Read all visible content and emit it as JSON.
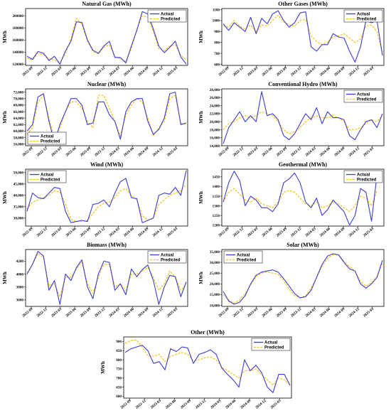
{
  "colors": {
    "actual": "#3b3bd6",
    "predicted": "#f2c318",
    "axis": "#000000"
  },
  "chart_data": [
    {
      "type": "line",
      "title": "Natural Gas (MWh)",
      "ylabel": "MWh",
      "ylim": [
        118000,
        212000
      ],
      "yticks": [
        120000,
        140000,
        160000,
        180000,
        200000
      ],
      "ytick_labels": [
        "120000",
        "140000",
        "160000",
        "180000",
        "200000"
      ],
      "xtick_labels": [
        "2022-09",
        "2022-12",
        "2023-03",
        "2023-06",
        "2023-09",
        "2023-12",
        "2024-03",
        "2024-06",
        "2024-09",
        "2024-12",
        "2025-03"
      ],
      "legend": "top-right",
      "series": [
        {
          "name": "Actual",
          "values": [
            133000,
            128000,
            141000,
            138000,
            126000,
            133000,
            120000,
            142000,
            158000,
            190000,
            189000,
            160000,
            143000,
            138000,
            150000,
            158000,
            131000,
            131000,
            122000,
            150000,
            176000,
            207000,
            203000,
            178000,
            150000,
            139000,
            148000,
            158000,
            132000,
            120000
          ]
        },
        {
          "name": "Predicted",
          "values": [
            130000,
            127000,
            138000,
            136000,
            129000,
            127000,
            123000,
            137000,
            162000,
            196000,
            186000,
            158000,
            141000,
            137000,
            148000,
            152000,
            133000,
            129000,
            125000,
            146000,
            178000,
            200000,
            198000,
            174000,
            146000,
            142000,
            150000,
            152000,
            135000,
            127000
          ]
        }
      ]
    },
    {
      "type": "line",
      "title": "Other Gases (MWh)",
      "ylabel": "MWh",
      "ylim": [
        590,
        1110
      ],
      "yticks": [
        600,
        700,
        800,
        900,
        1000,
        1100
      ],
      "ytick_labels": [
        "600",
        "700",
        "800",
        "900",
        "1000",
        "1100"
      ],
      "xtick_labels": [
        "2022-09",
        "2022-12",
        "2023-03",
        "2023-06",
        "2023-09",
        "2023-12",
        "2024-03",
        "2024-06",
        "2024-09",
        "2024-12",
        "2025-03"
      ],
      "legend": "top-right",
      "series": [
        {
          "name": "Actual",
          "values": [
            970,
            910,
            980,
            940,
            900,
            1030,
            880,
            1020,
            970,
            1060,
            1090,
            1000,
            940,
            980,
            1070,
            1080,
            760,
            720,
            780,
            780,
            880,
            850,
            840,
            720,
            620,
            760,
            1000,
            980,
            1000,
            680
          ]
        },
        {
          "name": "Predicted",
          "values": [
            950,
            940,
            1000,
            950,
            920,
            960,
            900,
            960,
            950,
            1000,
            1050,
            990,
            960,
            950,
            1000,
            1010,
            860,
            810,
            780,
            800,
            850,
            860,
            880,
            840,
            800,
            830,
            950,
            960,
            900,
            700
          ]
        }
      ]
    },
    {
      "type": "line",
      "title": "Nuclear (MWh)",
      "ylabel": "MWh",
      "ylim": [
        55500,
        73000
      ],
      "yticks": [
        56000,
        58000,
        60000,
        62000,
        64000,
        66000,
        68000,
        70000,
        72000
      ],
      "ytick_labels": [
        "56,000",
        "58,000",
        "60,000",
        "62,000",
        "64,000",
        "66,000",
        "68,000",
        "70,000",
        "72,000"
      ],
      "xtick_labels": [
        "2022-09",
        "2022-12",
        "2023-03",
        "2023-06",
        "2023-09",
        "2023-12",
        "2024-03",
        "2024-06",
        "2024-09",
        "2024-12",
        "2025-03"
      ],
      "legend": "bottom-left",
      "series": [
        {
          "name": "Actual",
          "values": [
            60000,
            62000,
            70500,
            71500,
            63000,
            56500,
            62000,
            66000,
            70000,
            70000,
            68000,
            62000,
            62500,
            69000,
            69000,
            65000,
            63000,
            57500,
            66000,
            69000,
            70000,
            70000,
            63000,
            59000,
            60500,
            64000,
            71500,
            72000,
            62000,
            62500
          ]
        },
        {
          "name": "Predicted",
          "values": [
            59000,
            61000,
            69000,
            71000,
            64000,
            58000,
            61000,
            66000,
            69000,
            69000,
            67000,
            63000,
            61000,
            71000,
            71000,
            67000,
            63000,
            58500,
            65000,
            68000,
            70000,
            69000,
            64000,
            58500,
            61000,
            63000,
            70000,
            71000,
            62500,
            62000
          ]
        }
      ]
    },
    {
      "type": "line",
      "title": "Conventional Hydro (MWh)",
      "ylabel": "MWh",
      "ylim": [
        14000,
        28200
      ],
      "yticks": [
        14000,
        16000,
        18000,
        20000,
        22000,
        24000,
        26000,
        28000
      ],
      "ytick_labels": [
        "14,000",
        "16,000",
        "18,000",
        "20,000",
        "22,000",
        "24,000",
        "26,000",
        "28,000"
      ],
      "xtick_labels": [
        "2022-09",
        "2022-12",
        "2023-03",
        "2023-06",
        "2023-09",
        "2023-12",
        "2024-03",
        "2024-06",
        "2024-09",
        "2024-12",
        "2025-03"
      ],
      "legend": "top-right",
      "series": [
        {
          "name": "Actual",
          "values": [
            14500,
            18500,
            20500,
            22500,
            20000,
            21500,
            20000,
            27500,
            21500,
            22000,
            20500,
            16500,
            15500,
            17000,
            19500,
            22000,
            20500,
            23500,
            19500,
            22500,
            21000,
            21000,
            20500,
            16500,
            15500,
            18000,
            20000,
            20500,
            18500,
            22000
          ]
        },
        {
          "name": "Predicted",
          "values": [
            18000,
            19500,
            20000,
            21000,
            21500,
            21000,
            21500,
            22500,
            22000,
            21500,
            20000,
            18000,
            17000,
            17500,
            18500,
            20000,
            21000,
            21500,
            21000,
            21000,
            21500,
            21000,
            20000,
            18000,
            18000,
            18500,
            19500,
            20500,
            20000,
            21500
          ]
        }
      ]
    },
    {
      "type": "line",
      "title": "Wind (MWh)",
      "ylabel": "MWh",
      "ylim": [
        26500,
        51500
      ],
      "yticks": [
        30000,
        35000,
        40000,
        45000,
        50000
      ],
      "ytick_labels": [
        "30,000",
        "35,000",
        "40,000",
        "45,000",
        "50,000"
      ],
      "xtick_labels": [
        "2022-09",
        "2022-12",
        "2023-03",
        "2023-06",
        "2023-09",
        "2023-12",
        "2024-03",
        "2024-06",
        "2024-09",
        "2024-12",
        "2025-03"
      ],
      "legend": "top-left",
      "series": [
        {
          "name": "Actual",
          "values": [
            33000,
            41000,
            39000,
            38500,
            41000,
            43500,
            43000,
            33000,
            28000,
            28500,
            29000,
            28500,
            36000,
            36500,
            38000,
            35000,
            41000,
            46000,
            47500,
            39000,
            38500,
            28000,
            29000,
            30000,
            40000,
            41000,
            40500,
            43500,
            40000,
            51000
          ]
        },
        {
          "name": "Predicted",
          "values": [
            34000,
            37000,
            38000,
            39000,
            40000,
            42000,
            41500,
            36000,
            29500,
            28500,
            28500,
            29000,
            32000,
            35000,
            36500,
            37000,
            39000,
            42000,
            43000,
            40000,
            38000,
            31000,
            29000,
            30000,
            36000,
            38000,
            40000,
            41000,
            42000,
            45000
          ]
        }
      ]
    },
    {
      "type": "line",
      "title": "Geothermal (MWh)",
      "ylabel": "MWh",
      "ylim": [
        1195,
        1490
      ],
      "yticks": [
        1200,
        1250,
        1300,
        1350,
        1400,
        1450
      ],
      "ytick_labels": [
        "1200",
        "1250",
        "1300",
        "1350",
        "1400",
        "1450"
      ],
      "xtick_labels": [
        "2022-09",
        "2022-12",
        "2023-03",
        "2023-06",
        "2023-09",
        "2023-12",
        "2024-03",
        "2024-06",
        "2024-09",
        "2024-12",
        "2025-03"
      ],
      "legend": "top-right",
      "series": [
        {
          "name": "Actual",
          "values": [
            1320,
            1420,
            1480,
            1430,
            1300,
            1350,
            1330,
            1290,
            1290,
            1270,
            1310,
            1420,
            1440,
            1470,
            1420,
            1320,
            1290,
            1340,
            1250,
            1280,
            1330,
            1300,
            1270,
            1200,
            1250,
            1390,
            1370,
            1220,
            1460,
            null
          ]
        },
        {
          "name": "Predicted",
          "values": [
            1320,
            1370,
            1390,
            1360,
            1330,
            1320,
            1340,
            1310,
            1300,
            1290,
            1320,
            1370,
            1380,
            1370,
            1340,
            1310,
            1300,
            1320,
            1290,
            1300,
            1320,
            1310,
            1290,
            1270,
            1300,
            1350,
            1340,
            1300,
            1380,
            null
          ]
        }
      ]
    },
    {
      "type": "line",
      "title": "Biomass (MWh)",
      "ylabel": "MWh",
      "ylim": [
        3500,
        4380
      ],
      "yticks": [
        3600,
        3800,
        4000,
        4200
      ],
      "ytick_labels": [
        "3600",
        "3800",
        "4000",
        "4200"
      ],
      "xtick_labels": [
        "2022-09",
        "2022-12",
        "2023-03",
        "2023-06",
        "2023-09",
        "2023-12",
        "2024-03",
        "2024-06",
        "2024-09",
        "2024-12",
        "2025-03"
      ],
      "legend": "top-right",
      "series": [
        {
          "name": "Actual",
          "values": [
            4000,
            4150,
            4350,
            4280,
            3750,
            3900,
            3530,
            4000,
            3900,
            4100,
            4220,
            3800,
            3620,
            4000,
            4200,
            4180,
            3750,
            3850,
            3680,
            4080,
            3960,
            4070,
            4140,
            3900,
            3530,
            3800,
            3980,
            3960,
            3650,
            3880
          ]
        },
        {
          "name": "Predicted",
          "values": [
            4020,
            4150,
            4320,
            4250,
            3820,
            3850,
            3650,
            3950,
            3950,
            4080,
            4180,
            3850,
            3700,
            3950,
            4150,
            4150,
            3800,
            3850,
            3750,
            4000,
            4000,
            4050,
            4100,
            3950,
            3750,
            3850,
            4050,
            3950,
            3750,
            3850
          ]
        }
      ]
    },
    {
      "type": "line",
      "title": "Solar (MWh)",
      "ylabel": "MWh",
      "ylim": [
        9500,
        36000
      ],
      "yticks": [
        10000,
        15000,
        20000,
        25000,
        30000,
        35000
      ],
      "ytick_labels": [
        "10,000",
        "15,000",
        "20,000",
        "25,000",
        "30,000",
        "35,000"
      ],
      "xtick_labels": [
        "2022-09",
        "2022-12",
        "2023-03",
        "2023-06",
        "2023-09",
        "2023-12",
        "2024-03",
        "2024-06",
        "2024-09",
        "2024-12",
        "2025-03"
      ],
      "legend": "top-left",
      "series": [
        {
          "name": "Actual",
          "values": [
            16500,
            12000,
            10500,
            11500,
            14500,
            20000,
            24000,
            25500,
            26000,
            26500,
            25500,
            22500,
            19000,
            15500,
            13500,
            14000,
            17000,
            23000,
            29000,
            33000,
            34000,
            33500,
            30000,
            27000,
            26000,
            20000,
            18000,
            20000,
            23000,
            31000
          ]
        },
        {
          "name": "Predicted",
          "values": [
            15000,
            12500,
            11000,
            12500,
            15500,
            19500,
            23500,
            25000,
            25500,
            25000,
            24500,
            21500,
            17500,
            14500,
            13500,
            14500,
            18000,
            23000,
            28000,
            32000,
            33500,
            33500,
            30500,
            28000,
            26000,
            21000,
            19000,
            20500,
            23500,
            29500
          ]
        }
      ]
    },
    {
      "type": "line",
      "title": "Other (MWh)",
      "ylabel": "MWh",
      "ylim": [
        590,
        925
      ],
      "yticks": [
        600,
        650,
        700,
        750,
        800,
        850,
        900
      ],
      "ytick_labels": [
        "600",
        "650",
        "700",
        "750",
        "800",
        "850",
        "900"
      ],
      "xtick_labels": [
        "2022-09",
        "2022-12",
        "2023-03",
        "2023-06",
        "2023-09",
        "2023-12",
        "2024-03",
        "2024-06",
        "2024-09",
        "2024-12",
        "2025-03"
      ],
      "legend": "top-right",
      "series": [
        {
          "name": "Actual",
          "values": [
            840,
            860,
            870,
            880,
            850,
            780,
            790,
            745,
            860,
            845,
            870,
            865,
            780,
            830,
            840,
            855,
            830,
            755,
            720,
            690,
            650,
            800,
            740,
            770,
            730,
            650,
            620,
            720,
            720,
            660
          ]
        },
        {
          "name": "Predicted",
          "values": [
            890,
            905,
            910,
            870,
            820,
            820,
            830,
            790,
            820,
            830,
            840,
            830,
            795,
            800,
            810,
            815,
            800,
            760,
            740,
            720,
            700,
            740,
            740,
            750,
            720,
            690,
            660,
            700,
            690,
            660
          ]
        }
      ]
    }
  ]
}
